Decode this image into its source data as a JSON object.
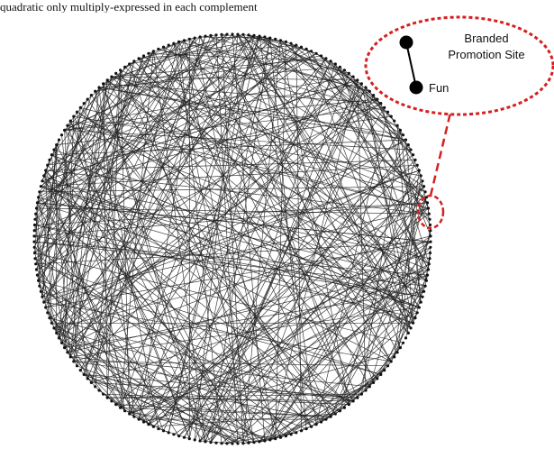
{
  "page_text": "quadratic only multiply-expressed in each complement",
  "network": {
    "node_count": 230,
    "edge_count": 470,
    "edge_color": "#222222",
    "node_color": "#111111"
  },
  "callout": {
    "outline_color": "#d42020",
    "node_a_label": "Branded",
    "node_a_label_line2": "Promotion Site",
    "node_b_label": "Fun"
  }
}
